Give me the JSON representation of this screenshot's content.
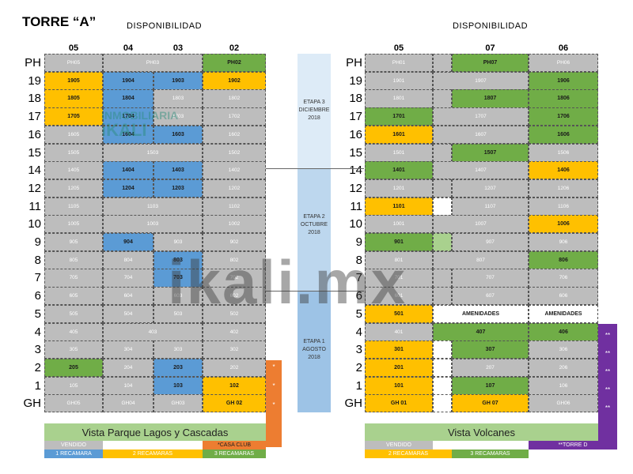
{
  "title": "TORRE “A”",
  "left_header": "DISPONIBILIDAD",
  "right_header": "DISPONIBILIDAD",
  "left_columns": [
    "05",
    "04",
    "03",
    "02"
  ],
  "right_columns": [
    "05",
    "07",
    "06"
  ],
  "floors": [
    "PH",
    "19",
    "18",
    "17",
    "16",
    "15",
    "14",
    "12",
    "11",
    "10",
    "9",
    "8",
    "7",
    "6",
    "5",
    "4",
    "3",
    "2",
    "1",
    "GH"
  ],
  "colors": {
    "gray": "#bdbdbd",
    "blue": "#5b9bd5",
    "yellow": "#ffc000",
    "green": "#70ad47",
    "orange": "#ed7d31",
    "purple": "#7030a0",
    "legend_bar": "#a9d18e"
  },
  "left_rows": [
    [
      [
        "PH05",
        "gray",
        1
      ],
      [
        "PH03",
        "gray",
        2
      ],
      [
        "PH02",
        "green",
        1
      ]
    ],
    [
      [
        "1905",
        "yellow",
        1
      ],
      [
        "1904",
        "blue",
        1
      ],
      [
        "1903",
        "blue",
        1
      ],
      [
        "1902",
        "yellow",
        1
      ]
    ],
    [
      [
        "1805",
        "yellow",
        1
      ],
      [
        "1804",
        "blue",
        1
      ],
      [
        "1803",
        "gray",
        1
      ],
      [
        "1802",
        "gray",
        1
      ]
    ],
    [
      [
        "1705",
        "yellow",
        1
      ],
      [
        "1704",
        "blue",
        1
      ],
      [
        "1703",
        "gray",
        1
      ],
      [
        "1702",
        "gray",
        1
      ]
    ],
    [
      [
        "1605",
        "gray",
        1
      ],
      [
        "1604",
        "blue",
        1
      ],
      [
        "1603",
        "blue",
        1
      ],
      [
        "1602",
        "gray",
        1
      ]
    ],
    [
      [
        "1505",
        "gray",
        1
      ],
      [
        "1503",
        "gray",
        2
      ],
      [
        "1502",
        "gray",
        1
      ]
    ],
    [
      [
        "1405",
        "gray",
        1
      ],
      [
        "1404",
        "blue",
        1
      ],
      [
        "1403",
        "blue",
        1
      ],
      [
        "1402",
        "gray",
        1
      ]
    ],
    [
      [
        "1205",
        "gray",
        1
      ],
      [
        "1204",
        "blue",
        1
      ],
      [
        "1203",
        "blue",
        1
      ],
      [
        "1202",
        "gray",
        1
      ]
    ],
    [
      [
        "1105",
        "gray",
        1
      ],
      [
        "1103",
        "gray",
        2
      ],
      [
        "1102",
        "gray",
        1
      ]
    ],
    [
      [
        "1005",
        "gray",
        1
      ],
      [
        "1003",
        "gray",
        2
      ],
      [
        "1002",
        "gray",
        1
      ]
    ],
    [
      [
        "905",
        "gray",
        1
      ],
      [
        "904",
        "blue",
        1
      ],
      [
        "903",
        "gray",
        1
      ],
      [
        "902",
        "gray",
        1
      ]
    ],
    [
      [
        "805",
        "gray",
        1
      ],
      [
        "804",
        "gray",
        1
      ],
      [
        "803",
        "blue",
        1
      ],
      [
        "802",
        "gray",
        1
      ]
    ],
    [
      [
        "705",
        "gray",
        1
      ],
      [
        "704",
        "gray",
        1
      ],
      [
        "703",
        "blue",
        1
      ],
      [
        "702",
        "gray",
        1
      ]
    ],
    [
      [
        "605",
        "gray",
        1
      ],
      [
        "604",
        "gray",
        1
      ],
      [
        "603",
        "gray",
        1
      ],
      [
        "602",
        "gray",
        1
      ]
    ],
    [
      [
        "505",
        "gray",
        1
      ],
      [
        "504",
        "gray",
        1
      ],
      [
        "503",
        "gray",
        1
      ],
      [
        "502",
        "gray",
        1
      ]
    ],
    [
      [
        "405",
        "gray",
        1
      ],
      [
        "403",
        "gray",
        2
      ],
      [
        "402",
        "gray",
        1
      ]
    ],
    [
      [
        "305",
        "gray",
        1
      ],
      [
        "304",
        "gray",
        1
      ],
      [
        "303",
        "gray",
        1
      ],
      [
        "302",
        "gray",
        1
      ]
    ],
    [
      [
        "205",
        "green",
        1
      ],
      [
        "204",
        "gray",
        1
      ],
      [
        "203",
        "blue",
        1
      ],
      [
        "202",
        "gray",
        1
      ]
    ],
    [
      [
        "105",
        "gray",
        1
      ],
      [
        "104",
        "gray",
        1
      ],
      [
        "103",
        "blue",
        1
      ],
      [
        "102",
        "yellow",
        1
      ]
    ],
    [
      [
        "GH05",
        "gray",
        1
      ],
      [
        "GH04",
        "gray",
        1
      ],
      [
        "GH03",
        "gray",
        1
      ],
      [
        "GH 02",
        "yellow",
        1
      ]
    ]
  ],
  "right_rows": [
    [
      [
        "PH01",
        "gray",
        1
      ],
      [
        "",
        "gray",
        1
      ],
      [
        "PH07",
        "green",
        1
      ],
      [
        "PH06",
        "gray",
        1
      ]
    ],
    [
      [
        "1901",
        "gray",
        1
      ],
      [
        "1907",
        "gray",
        2
      ],
      [
        "1906",
        "green",
        1
      ]
    ],
    [
      [
        "1801",
        "gray",
        1
      ],
      [
        "",
        "gray",
        1
      ],
      [
        "1807",
        "green",
        1
      ],
      [
        "1806",
        "green",
        1
      ]
    ],
    [
      [
        "1701",
        "green",
        1
      ],
      [
        "1707",
        "gray",
        2
      ],
      [
        "1706",
        "green",
        1
      ]
    ],
    [
      [
        "1601",
        "yellow",
        1
      ],
      [
        "1607",
        "gray",
        2
      ],
      [
        "1606",
        "green",
        1
      ]
    ],
    [
      [
        "1501",
        "gray",
        1
      ],
      [
        "",
        "gray",
        1
      ],
      [
        "1507",
        "green",
        1
      ],
      [
        "1506",
        "gray",
        1
      ]
    ],
    [
      [
        "1401",
        "green",
        1
      ],
      [
        "1407",
        "gray",
        2
      ],
      [
        "1406",
        "yellow",
        1
      ]
    ],
    [
      [
        "1201",
        "gray",
        1
      ],
      [
        "",
        "gray",
        1
      ],
      [
        "1207",
        "gray",
        1
      ],
      [
        "1206",
        "gray",
        1
      ]
    ],
    [
      [
        "1101",
        "yellow",
        1
      ],
      [
        "",
        "white",
        1
      ],
      [
        "1107",
        "gray",
        1
      ],
      [
        "1106",
        "gray",
        1
      ]
    ],
    [
      [
        "1001",
        "gray",
        1
      ],
      [
        "1007",
        "gray",
        2
      ],
      [
        "1006",
        "yellow",
        1
      ]
    ],
    [
      [
        "901",
        "green",
        1
      ],
      [
        "",
        "lgreen",
        1
      ],
      [
        "907",
        "gray",
        1
      ],
      [
        "906",
        "gray",
        1
      ]
    ],
    [
      [
        "801",
        "gray",
        1
      ],
      [
        "807",
        "gray",
        2
      ],
      [
        "806",
        "green",
        1
      ]
    ],
    [
      [
        "701",
        "gray",
        1
      ],
      [
        "",
        "gray",
        1
      ],
      [
        "707",
        "gray",
        1
      ],
      [
        "706",
        "gray",
        1
      ]
    ],
    [
      [
        "601",
        "gray",
        1
      ],
      [
        "",
        "gray",
        1
      ],
      [
        "607",
        "gray",
        1
      ],
      [
        "606",
        "gray",
        1
      ]
    ],
    [
      [
        "501",
        "yellow",
        1
      ],
      [
        "AMENIDADES",
        "white",
        2
      ],
      [
        "AMENIDADES",
        "white",
        1
      ]
    ],
    [
      [
        "401",
        "gray",
        1
      ],
      [
        "407",
        "green",
        2
      ],
      [
        "406",
        "green",
        1
      ]
    ],
    [
      [
        "301",
        "yellow",
        1
      ],
      [
        "",
        "white",
        1
      ],
      [
        "307",
        "green",
        1
      ],
      [
        "306",
        "gray",
        1
      ]
    ],
    [
      [
        "201",
        "yellow",
        1
      ],
      [
        "",
        "white",
        1
      ],
      [
        "207",
        "gray",
        1
      ],
      [
        "206",
        "gray",
        1
      ]
    ],
    [
      [
        "101",
        "yellow",
        1
      ],
      [
        "",
        "white",
        1
      ],
      [
        "107",
        "green",
        1
      ],
      [
        "106",
        "gray",
        1
      ]
    ],
    [
      [
        "GH 01",
        "yellow",
        1
      ],
      [
        "",
        "white",
        1
      ],
      [
        "GH 07",
        "yellow",
        1
      ],
      [
        "GH06",
        "gray",
        1
      ]
    ]
  ],
  "bold_units": [
    "PH02",
    "1905",
    "1904",
    "1903",
    "1902",
    "1805",
    "1804",
    "1705",
    "1704",
    "1604",
    "1603",
    "1404",
    "1403",
    "1204",
    "1203",
    "904",
    "803",
    "703",
    "205",
    "203",
    "103",
    "102",
    "GH 02",
    "PH07",
    "1906",
    "1807",
    "1806",
    "1701",
    "1706",
    "1601",
    "1606",
    "1507",
    "1401",
    "1406",
    "1101",
    "1006",
    "901",
    "806",
    "501",
    "AMENIDADES",
    "407",
    "406",
    "301",
    "307",
    "201",
    "101",
    "107",
    "GH 01",
    "GH 07"
  ],
  "etapas": [
    {
      "lines": [
        "ETAPA 3",
        "DICIEMBRE",
        "2018"
      ]
    },
    {
      "lines": [
        "ETAPA 2",
        "OCTUBRE",
        "2018"
      ]
    },
    {
      "lines": [
        "ETAPA 1",
        "AGOSTO",
        "2018"
      ]
    }
  ],
  "left_view": "Vista Parque Lagos y Cascadas",
  "right_view": "Vista Volcanes",
  "left_legend": {
    "vendido": "VENDIDO",
    "casa_club": "*CASA CLUB",
    "rec1": "1 RECAMARA",
    "rec2": "2 RECAMARAS",
    "rec3": "3 RECAMARAS"
  },
  "right_legend": {
    "vendido": "VENDIDO",
    "torre_d": "**TORRE D",
    "rec2": "2 RECAMARAS",
    "rec3": "3 RECAMARAS"
  },
  "orange_marks": [
    "*",
    "*",
    "*"
  ],
  "purple_marks": [
    "**",
    "**",
    "**",
    "**",
    "**"
  ],
  "watermark": "ikali.mx",
  "logo_top": "INMOBILIARIA",
  "logo_bottom": "iKALI"
}
